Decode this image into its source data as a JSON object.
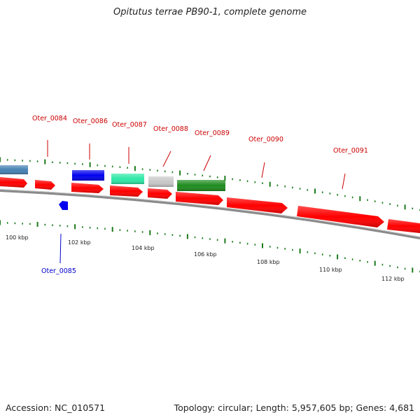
{
  "title": "Opitutus terrae PB90-1, complete genome",
  "footer": {
    "accession": "Accession: NC_010571",
    "summary": "Topology: circular; Length: 5,957,605 bp; Genes: 4,681"
  },
  "colors": {
    "forward_cds": "#ff0000",
    "reverse_cds": "#0000ee",
    "forward_label": "#cc0000",
    "reverse_label": "#0000cc",
    "tick": "#1a7a1a",
    "backbone": "#808080"
  },
  "scale": {
    "unit": "kbp",
    "labels": [
      "100 kbp",
      "102 kbp",
      "104 kbp",
      "106 kbp",
      "108 kbp",
      "110 kbp",
      "112 kbp"
    ]
  },
  "genes": [
    {
      "name": "Oter_0084",
      "strand": "+"
    },
    {
      "name": "Oter_0085",
      "strand": "-"
    },
    {
      "name": "Oter_0086",
      "strand": "+"
    },
    {
      "name": "Oter_0087",
      "strand": "+"
    },
    {
      "name": "Oter_0088",
      "strand": "+"
    },
    {
      "name": "Oter_0089",
      "strand": "+"
    },
    {
      "name": "Oter_0090",
      "strand": "+"
    },
    {
      "name": "Oter_0091",
      "strand": "+"
    }
  ],
  "feature_colors": [
    "#4682b4",
    "#0000ee",
    "#2ee8a6",
    "#c8c8c8",
    "#1e8c1e"
  ]
}
